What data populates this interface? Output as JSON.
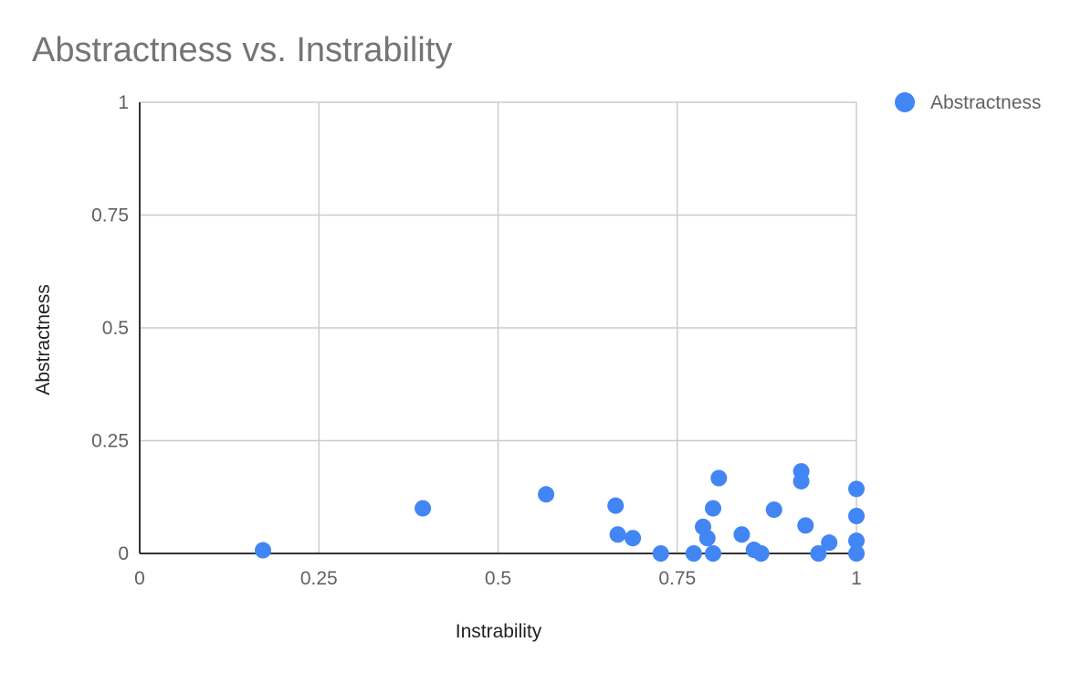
{
  "chart_data": {
    "type": "scatter",
    "title": "Abstractness vs. Instrability",
    "xlabel": "Instrability",
    "ylabel": "Abstractness",
    "xlim": [
      0,
      1
    ],
    "ylim": [
      0,
      1
    ],
    "grid": true,
    "x_ticks": [
      "0",
      "0.25",
      "0.5",
      "0.75",
      "1"
    ],
    "y_ticks": [
      "0",
      "0.25",
      "0.5",
      "0.75",
      "1"
    ],
    "legend_position": "top-right",
    "series": [
      {
        "name": "Abstractness",
        "color": "#4285f4",
        "points": [
          {
            "x": 0.172,
            "y": 0.007
          },
          {
            "x": 0.395,
            "y": 0.1
          },
          {
            "x": 0.567,
            "y": 0.131
          },
          {
            "x": 0.664,
            "y": 0.106
          },
          {
            "x": 0.667,
            "y": 0.042
          },
          {
            "x": 0.688,
            "y": 0.034
          },
          {
            "x": 0.727,
            "y": 0.0
          },
          {
            "x": 0.773,
            "y": 0.0
          },
          {
            "x": 0.786,
            "y": 0.059
          },
          {
            "x": 0.792,
            "y": 0.034
          },
          {
            "x": 0.8,
            "y": 0.1
          },
          {
            "x": 0.8,
            "y": 0.0
          },
          {
            "x": 0.808,
            "y": 0.167
          },
          {
            "x": 0.84,
            "y": 0.042
          },
          {
            "x": 0.857,
            "y": 0.008
          },
          {
            "x": 0.867,
            "y": 0.0
          },
          {
            "x": 0.885,
            "y": 0.097
          },
          {
            "x": 0.923,
            "y": 0.182
          },
          {
            "x": 0.923,
            "y": 0.16
          },
          {
            "x": 0.929,
            "y": 0.062
          },
          {
            "x": 0.947,
            "y": 0.0
          },
          {
            "x": 0.962,
            "y": 0.024
          },
          {
            "x": 1.0,
            "y": 0.143
          },
          {
            "x": 1.0,
            "y": 0.083
          },
          {
            "x": 1.0,
            "y": 0.028
          },
          {
            "x": 1.0,
            "y": 0.0
          }
        ]
      }
    ]
  }
}
